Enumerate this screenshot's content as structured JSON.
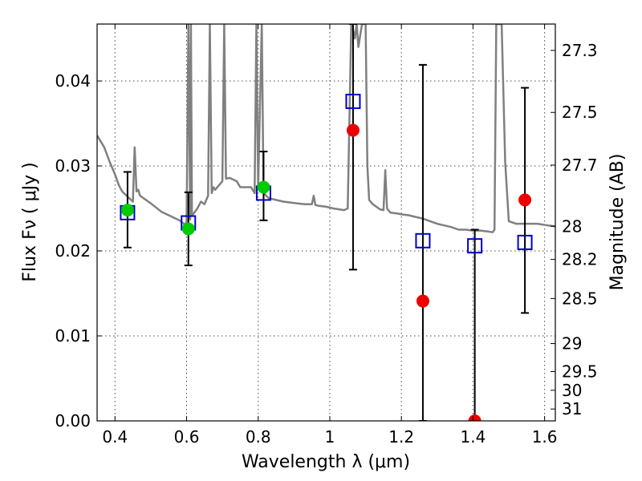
{
  "chart_data": {
    "type": "scatter",
    "xlabel": "Wavelength  λ (μm)",
    "ylabel": "Flux  Fν  ( μJy )",
    "ylabel_right": "Magnitude (AB)",
    "xlim": [
      0.35,
      1.63
    ],
    "ylim": [
      0.0,
      0.0467
    ],
    "grid": true,
    "x_ticks": [
      0.4,
      0.6,
      0.8,
      1.0,
      1.2,
      1.4,
      1.6
    ],
    "x_tick_labels": [
      "0.4",
      "0.6",
      "0.8",
      "1",
      "1.2",
      "1.4",
      "1.6"
    ],
    "y_ticks": [
      0.0,
      0.01,
      0.02,
      0.03,
      0.04
    ],
    "y_tick_labels": [
      "0.00",
      "0.01",
      "0.02",
      "0.03",
      "0.04"
    ],
    "right_axis_ticks": [
      {
        "label": "27.3",
        "flux": 0.0436
      },
      {
        "label": "27.5",
        "flux": 0.0363
      },
      {
        "label": "27.7",
        "flux": 0.0301
      },
      {
        "label": "28",
        "flux": 0.0229
      },
      {
        "label": "28.2",
        "flux": 0.019
      },
      {
        "label": "28.5",
        "flux": 0.0144
      },
      {
        "label": "29",
        "flux": 0.0091
      },
      {
        "label": "29.5",
        "flux": 0.0058
      },
      {
        "label": "30",
        "flux": 0.0036
      },
      {
        "label": "31",
        "flux": 0.0014
      }
    ],
    "series": [
      {
        "kind": "model-spectrum",
        "color": "#808080",
        "x": [
          0.35,
          0.37,
          0.385,
          0.4,
          0.41,
          0.42,
          0.43,
          0.44,
          0.445,
          0.45,
          0.455,
          0.46,
          0.465,
          0.47,
          0.5,
          0.53,
          0.56,
          0.58,
          0.595,
          0.6,
          0.605,
          0.61,
          0.612,
          0.615,
          0.62,
          0.63,
          0.64,
          0.65,
          0.66,
          0.665,
          0.67,
          0.675,
          0.68,
          0.7,
          0.705,
          0.71,
          0.72,
          0.74,
          0.75,
          0.76,
          0.78,
          0.79,
          0.795,
          0.8,
          0.81,
          0.815,
          0.82,
          0.83,
          0.85,
          0.87,
          0.89,
          0.91,
          0.93,
          0.95,
          0.955,
          0.96,
          0.97,
          0.99,
          1.01,
          1.04,
          1.05,
          1.06,
          1.065,
          1.07,
          1.075,
          1.08,
          1.09,
          1.1,
          1.105,
          1.11,
          1.12,
          1.13,
          1.14,
          1.15,
          1.155,
          1.16,
          1.165,
          1.17,
          1.19,
          1.2,
          1.22,
          1.24,
          1.26,
          1.28,
          1.3,
          1.32,
          1.34,
          1.36,
          1.38,
          1.4,
          1.42,
          1.44,
          1.455,
          1.46,
          1.465,
          1.47,
          1.475,
          1.48,
          1.49,
          1.5,
          1.52,
          1.55,
          1.58,
          1.61,
          1.63
        ],
        "y": [
          0.0336,
          0.0322,
          0.0305,
          0.029,
          0.0278,
          0.027,
          0.0266,
          0.0262,
          0.026,
          0.0258,
          0.0322,
          0.027,
          0.0272,
          0.0265,
          0.0256,
          0.0246,
          0.024,
          0.0236,
          0.0231,
          0.0234,
          0.0467,
          0.0237,
          0.0467,
          0.0242,
          0.0244,
          0.025,
          0.0258,
          0.0255,
          0.0265,
          0.0467,
          0.0268,
          0.0275,
          0.0272,
          0.0282,
          0.0467,
          0.0285,
          0.0286,
          0.0282,
          0.0275,
          0.0275,
          0.0275,
          0.0268,
          0.0467,
          0.0275,
          0.0467,
          0.027,
          0.0266,
          0.0262,
          0.026,
          0.0258,
          0.0257,
          0.0256,
          0.0255,
          0.0255,
          0.0265,
          0.0254,
          0.0253,
          0.0252,
          0.025,
          0.0248,
          0.025,
          0.0467,
          0.046,
          0.045,
          0.0467,
          0.044,
          0.0467,
          0.0467,
          0.03,
          0.026,
          0.0255,
          0.0252,
          0.0249,
          0.0248,
          0.0295,
          0.025,
          0.0247,
          0.0245,
          0.0244,
          0.0243,
          0.0242,
          0.024,
          0.0238,
          0.0235,
          0.0232,
          0.023,
          0.0228,
          0.0225,
          0.0225,
          0.0224,
          0.0224,
          0.0223,
          0.0222,
          0.0225,
          0.0467,
          0.0467,
          0.0467,
          0.0467,
          0.0305,
          0.0235,
          0.0232,
          0.0232,
          0.0232,
          0.023,
          0.0229
        ]
      },
      {
        "kind": "observed-with-errorbars",
        "marker": "open-square",
        "color": "#0000cc",
        "points": [
          {
            "x": 0.435,
            "y": 0.0245,
            "ylow": 0.0204,
            "yhigh": 0.0293
          },
          {
            "x": 0.605,
            "y": 0.0233,
            "ylow": 0.0183,
            "yhigh": 0.0269
          },
          {
            "x": 0.815,
            "y": 0.0268,
            "ylow": 0.0236,
            "yhigh": 0.0317
          },
          {
            "x": 1.065,
            "y": 0.0376,
            "ylow": 0.0178,
            "yhigh": 0.0467
          },
          {
            "x": 1.26,
            "y": 0.0212,
            "ylow": 0.0,
            "yhigh": 0.0419
          },
          {
            "x": 1.405,
            "y": 0.0206,
            "ylow": 0.0,
            "yhigh": 0.0225
          },
          {
            "x": 1.545,
            "y": 0.021,
            "ylow": 0.0127,
            "yhigh": 0.0392
          }
        ]
      },
      {
        "kind": "filled-circles",
        "color": "#00cc00",
        "points": [
          {
            "x": 0.435,
            "y": 0.0248
          },
          {
            "x": 0.605,
            "y": 0.0226
          },
          {
            "x": 0.815,
            "y": 0.0275
          }
        ]
      },
      {
        "kind": "filled-circles",
        "color": "#ee0000",
        "points": [
          {
            "x": 1.065,
            "y": 0.0342
          },
          {
            "x": 1.26,
            "y": 0.0141
          },
          {
            "x": 1.405,
            "y": 0.0
          },
          {
            "x": 1.545,
            "y": 0.026
          }
        ]
      }
    ]
  }
}
